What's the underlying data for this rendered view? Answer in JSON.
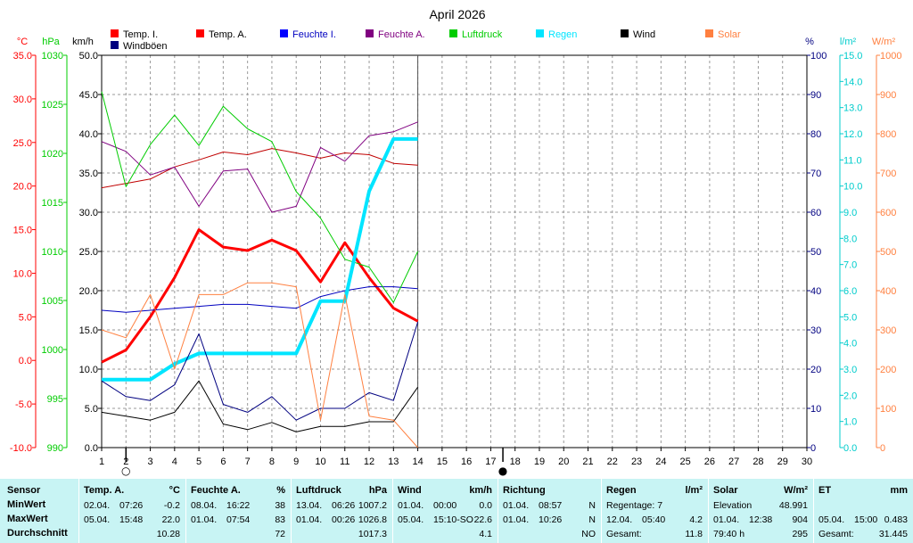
{
  "chart_data": {
    "type": "line",
    "title": "April 2026",
    "x": [
      1,
      2,
      3,
      4,
      5,
      6,
      7,
      8,
      9,
      10,
      11,
      12,
      13,
      14
    ],
    "xlim": [
      1,
      30
    ],
    "legend": [
      {
        "name": "Temp. I.",
        "color": "#ff0000"
      },
      {
        "name": "Temp. A.",
        "color": "#ff0000"
      },
      {
        "name": "Feuchte I.",
        "color": "#0000ff"
      },
      {
        "name": "Feuchte A.",
        "color": "#800080"
      },
      {
        "name": "Luftdruck",
        "color": "#00cc00"
      },
      {
        "name": "Regen",
        "color": "#00e5ff"
      },
      {
        "name": "Wind",
        "color": "#000000"
      },
      {
        "name": "Solar",
        "color": "#ff8040"
      },
      {
        "name": "Windböen",
        "color": "#000080"
      }
    ],
    "axes": {
      "temp": {
        "unit": "°C",
        "min": -10,
        "max": 35,
        "ticks": [
          "35.0",
          "30.0",
          "25.0",
          "20.0",
          "15.0",
          "10.0",
          "5.0",
          "0.0",
          "-5.0",
          "-10.0"
        ],
        "color": "#ff0000"
      },
      "pressure": {
        "unit": "hPa",
        "min": 990,
        "max": 1030,
        "ticks": [
          "1030",
          "1025",
          "1020",
          "1015",
          "1010",
          "1005",
          "1000",
          "995",
          "990"
        ],
        "color": "#00cc00"
      },
      "wind": {
        "unit": "km/h",
        "min": 0,
        "max": 50,
        "ticks": [
          "50.0",
          "45.0",
          "40.0",
          "35.0",
          "30.0",
          "25.0",
          "20.0",
          "15.0",
          "10.0",
          "5.0",
          "0.0"
        ],
        "color": "#000000"
      },
      "humidity": {
        "unit": "%",
        "min": 0,
        "max": 100,
        "ticks": [
          "100",
          "90",
          "80",
          "70",
          "60",
          "50",
          "40",
          "30",
          "20",
          "10",
          "0"
        ],
        "color": "#000080"
      },
      "rain": {
        "unit": "l/m²",
        "min": 0,
        "max": 15,
        "ticks": [
          "15.0",
          "14.0",
          "13.0",
          "12.0",
          "11.0",
          "10.0",
          "9.0",
          "8.0",
          "7.0",
          "6.0",
          "5.0",
          "4.0",
          "3.0",
          "2.0",
          "1.0",
          "0.0"
        ],
        "color": "#00cccc"
      },
      "solar": {
        "unit": "W/m²",
        "min": 0,
        "max": 1000,
        "ticks": [
          "1000",
          "900",
          "800",
          "700",
          "600",
          "500",
          "400",
          "300",
          "200",
          "100",
          "0"
        ],
        "color": "#ff8040"
      }
    },
    "series": [
      {
        "name": "Temp. I.",
        "axis": "temp",
        "color": "#c00000",
        "width": 1,
        "values": [
          19.8,
          20.3,
          20.8,
          22.2,
          23.0,
          23.9,
          23.6,
          24.3,
          23.8,
          23.2,
          23.8,
          23.6,
          22.6,
          22.4
        ]
      },
      {
        "name": "Temp. A.",
        "axis": "temp",
        "color": "#ff0000",
        "width": 3,
        "values": [
          -0.2,
          1.2,
          5.0,
          9.5,
          15.0,
          13.0,
          12.6,
          13.8,
          12.6,
          9.0,
          13.5,
          9.5,
          6.0,
          4.5
        ]
      },
      {
        "name": "Feuchte I.",
        "axis": "humidity",
        "color": "#0000c0",
        "width": 1,
        "values": [
          35,
          34.5,
          35,
          35.5,
          36,
          36.5,
          36.5,
          36,
          35.5,
          38.5,
          40,
          41,
          41,
          40.5
        ]
      },
      {
        "name": "Feuchte A.",
        "axis": "humidity",
        "color": "#800080",
        "width": 1,
        "values": [
          78,
          75.5,
          69.5,
          71.5,
          61.5,
          70.5,
          71,
          60,
          61.5,
          76.5,
          73,
          79.5,
          80.5,
          83
        ]
      },
      {
        "name": "Luftdruck",
        "axis": "pressure",
        "color": "#00cc00",
        "width": 1,
        "values": [
          1026.3,
          1016.6,
          1020.9,
          1023.9,
          1020.8,
          1024.8,
          1022.5,
          1021.2,
          1016.1,
          1013.4,
          1009.2,
          1008.4,
          1004.8,
          1010
        ]
      },
      {
        "name": "Regen",
        "axis": "rain",
        "color": "#00e5ff",
        "width": 4,
        "values": [
          2.6,
          2.6,
          2.6,
          3.2,
          3.6,
          3.6,
          3.6,
          3.6,
          3.6,
          5.6,
          5.6,
          9.8,
          11.8,
          11.8
        ]
      },
      {
        "name": "Wind",
        "axis": "wind",
        "color": "#000000",
        "width": 1,
        "values": [
          4.5,
          4.0,
          3.5,
          4.5,
          8.5,
          3.0,
          2.3,
          3.2,
          2.0,
          2.7,
          2.7,
          3.3,
          3.3,
          7.7
        ]
      },
      {
        "name": "Windböen",
        "axis": "wind",
        "color": "#000080",
        "width": 1,
        "values": [
          8.5,
          6.5,
          6.0,
          8.0,
          14.5,
          5.5,
          4.5,
          6.5,
          3.5,
          5.0,
          5.0,
          7.0,
          6.0,
          16.0
        ]
      },
      {
        "name": "Solar",
        "axis": "solar",
        "color": "#ff8040",
        "width": 1,
        "values": [
          300,
          280,
          390,
          200,
          390,
          390,
          420,
          420,
          410,
          70,
          390,
          80,
          70,
          0
        ]
      }
    ],
    "markers": [
      {
        "x": 2,
        "symbol": "○"
      },
      {
        "x": 17.5,
        "symbol": "●"
      }
    ],
    "grid": true
  },
  "table": {
    "row_labels": [
      "Sensor",
      "MinWert",
      "MaxWert",
      "Durchschnitt"
    ],
    "blocks": [
      {
        "title": "Temp. A.",
        "unit": "°C",
        "rows": [
          [
            "02.04.",
            "07:26",
            "-0.2"
          ],
          [
            "05.04.",
            "15:48",
            "22.0"
          ],
          [
            "",
            "",
            "10.28"
          ]
        ]
      },
      {
        "title": "Feuchte A.",
        "unit": "%",
        "rows": [
          [
            "08.04.",
            "16:22",
            "38"
          ],
          [
            "01.04.",
            "07:54",
            "83"
          ],
          [
            "",
            "",
            "72"
          ]
        ]
      },
      {
        "title": "Luftdruck",
        "unit": "hPa",
        "rows": [
          [
            "13.04.",
            "06:26",
            "1007.2"
          ],
          [
            "01.04.",
            "00:26",
            "1026.8"
          ],
          [
            "",
            "",
            "1017.3"
          ]
        ]
      },
      {
        "title": "Wind",
        "unit": "km/h",
        "rows": [
          [
            "01.04.",
            "00:00",
            "0.0"
          ],
          [
            "05.04.",
            "15:10-SO",
            "22.6"
          ],
          [
            "",
            "",
            "4.1"
          ]
        ]
      },
      {
        "title": "Richtung",
        "unit": "",
        "rows": [
          [
            "01.04.",
            "08:57",
            "N"
          ],
          [
            "01.04.",
            "10:26",
            "N"
          ],
          [
            "",
            "",
            "NO"
          ]
        ]
      },
      {
        "title": "Regen",
        "unit": "l/m²",
        "rows": [
          [
            "Regentage: 7",
            "",
            ""
          ],
          [
            "12.04.",
            "05:40",
            "4.2"
          ],
          [
            "Gesamt:",
            "",
            "11.8"
          ]
        ]
      },
      {
        "title": "Solar",
        "unit": "W/m²",
        "rows": [
          [
            "Elevation",
            "",
            "48.991"
          ],
          [
            "01.04.",
            "12:38",
            "904"
          ],
          [
            "79:40 h",
            "",
            "295"
          ]
        ]
      },
      {
        "title": "ET",
        "unit": "mm",
        "rows": [
          [
            "",
            "",
            ""
          ],
          [
            "05.04.",
            "15:00",
            "0.483"
          ],
          [
            "Gesamt:",
            "",
            "31.445"
          ]
        ]
      }
    ]
  }
}
